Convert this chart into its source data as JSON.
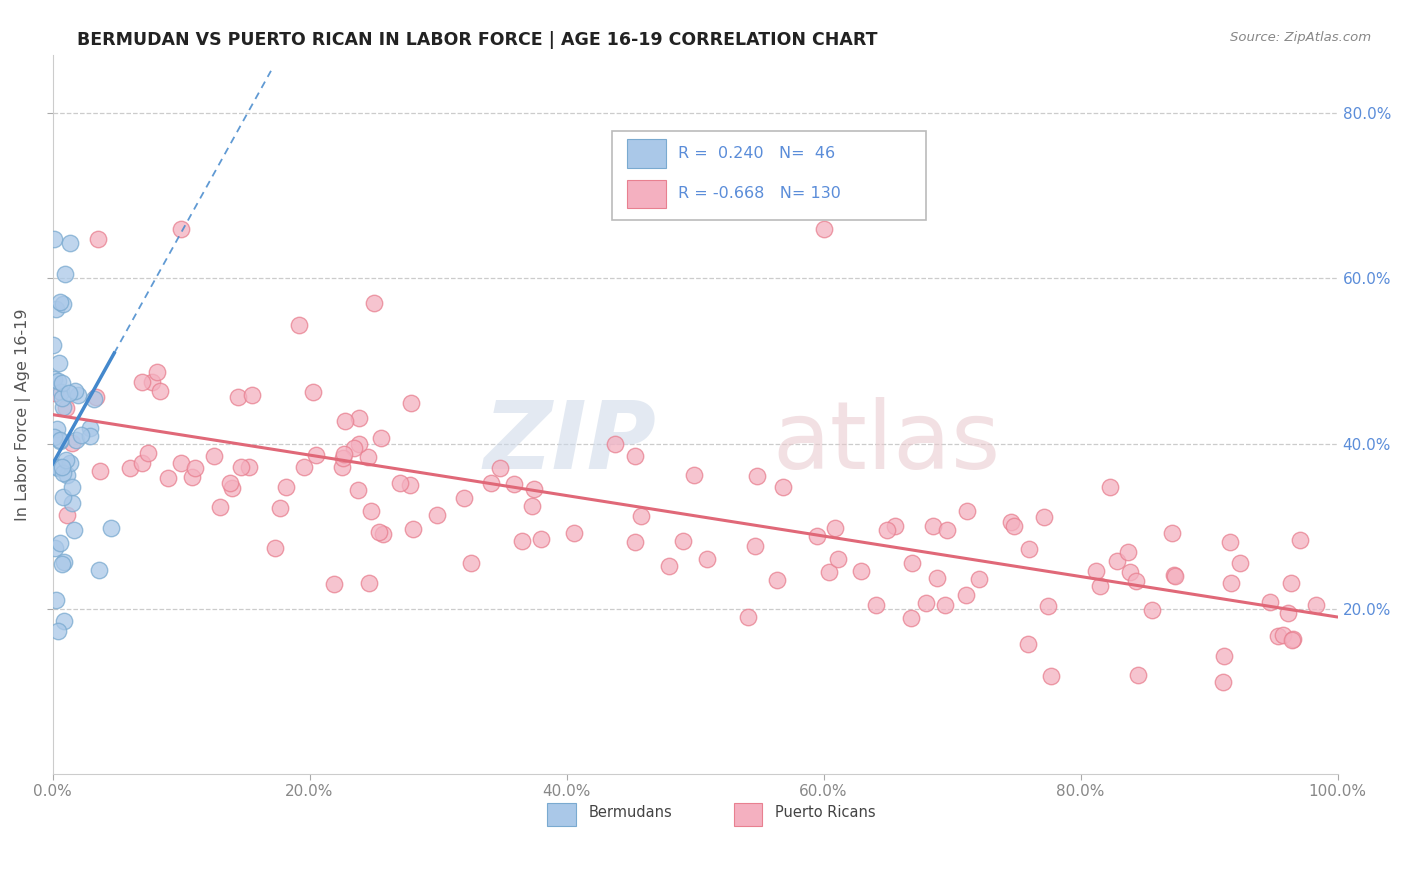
{
  "title": "BERMUDAN VS PUERTO RICAN IN LABOR FORCE | AGE 16-19 CORRELATION CHART",
  "source": "Source: ZipAtlas.com",
  "ylabel": "In Labor Force | Age 16-19",
  "xlim": [
    0.0,
    1.0
  ],
  "ylim": [
    0.0,
    0.87
  ],
  "xticks": [
    0.0,
    0.2,
    0.4,
    0.6,
    0.8,
    1.0
  ],
  "xticklabels": [
    "0.0%",
    "20.0%",
    "40.0%",
    "60.0%",
    "80.0%",
    "100.0%"
  ],
  "ytick_positions": [
    0.2,
    0.4,
    0.6,
    0.8
  ],
  "yticklabels_right": [
    "20.0%",
    "40.0%",
    "60.0%",
    "80.0%"
  ],
  "bermuda_R": 0.24,
  "bermuda_N": 46,
  "puertorico_R": -0.668,
  "puertorico_N": 130,
  "bermuda_dot_color": "#aac8e8",
  "bermuda_edge_color": "#7aaad0",
  "bermuda_line_color": "#4488cc",
  "puertorico_dot_color": "#f4b0c0",
  "puertorico_edge_color": "#e88090",
  "puertorico_line_color": "#e06878",
  "right_tick_color": "#5b8dd9",
  "title_color": "#222222",
  "source_color": "#888888",
  "ylabel_color": "#555555",
  "xtick_color": "#888888",
  "grid_color": "#cccccc",
  "legend_edge_color": "#bbbbbb",
  "watermark_zip_color": "#ccd8e8",
  "watermark_atlas_color": "#e8c8cc",
  "pr_trend_intercept": 0.435,
  "pr_trend_slope": -0.245,
  "berm_trend_intercept": 0.375,
  "berm_trend_slope": 2.8
}
